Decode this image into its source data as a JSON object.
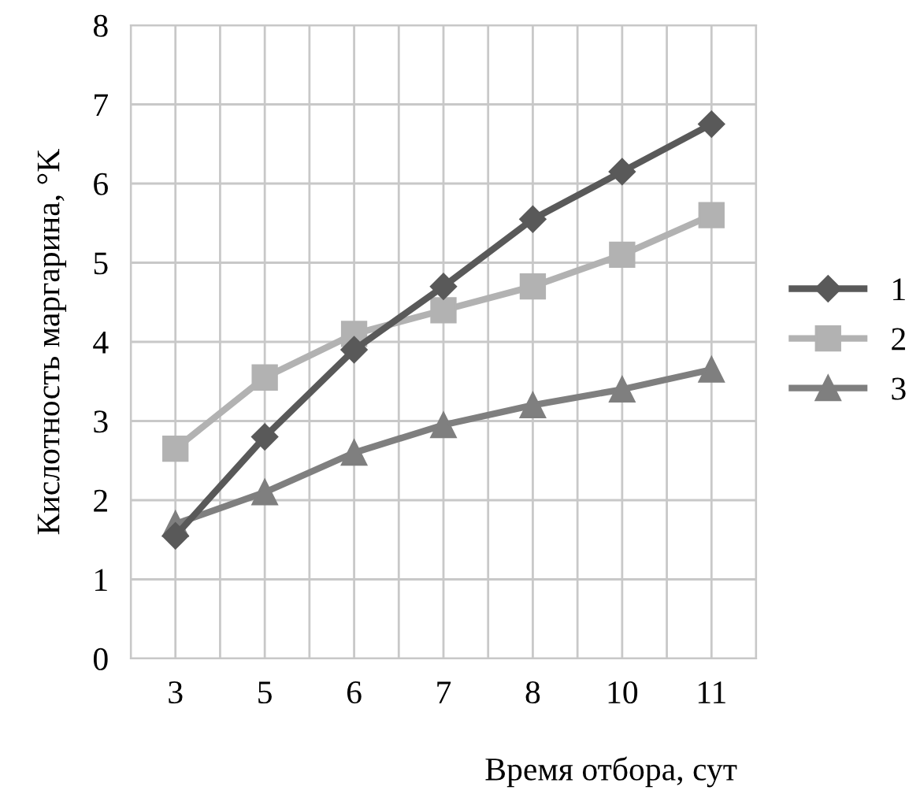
{
  "chart_data": {
    "type": "line",
    "xlabel": "Время отбора, сут",
    "ylabel": "Кислотность маргарина, °K",
    "categories": [
      "3",
      "5",
      "6",
      "7",
      "8",
      "10",
      "11"
    ],
    "series": [
      {
        "name": "1",
        "color": "#595959",
        "marker": "diamond",
        "values": [
          1.55,
          2.8,
          3.9,
          4.7,
          5.55,
          6.15,
          6.75
        ]
      },
      {
        "name": "2",
        "color": "#b2b2b2",
        "marker": "square",
        "values": [
          2.65,
          3.55,
          4.1,
          4.4,
          4.7,
          5.1,
          5.6
        ]
      },
      {
        "name": "3",
        "color": "#7f7f7f",
        "marker": "triangle",
        "values": [
          1.7,
          2.1,
          2.6,
          2.95,
          3.2,
          3.4,
          3.65
        ]
      }
    ],
    "ylim": [
      0,
      8
    ],
    "yticks": [
      0,
      1,
      2,
      3,
      4,
      5,
      6,
      7,
      8
    ],
    "grid": true,
    "legend": "right"
  }
}
